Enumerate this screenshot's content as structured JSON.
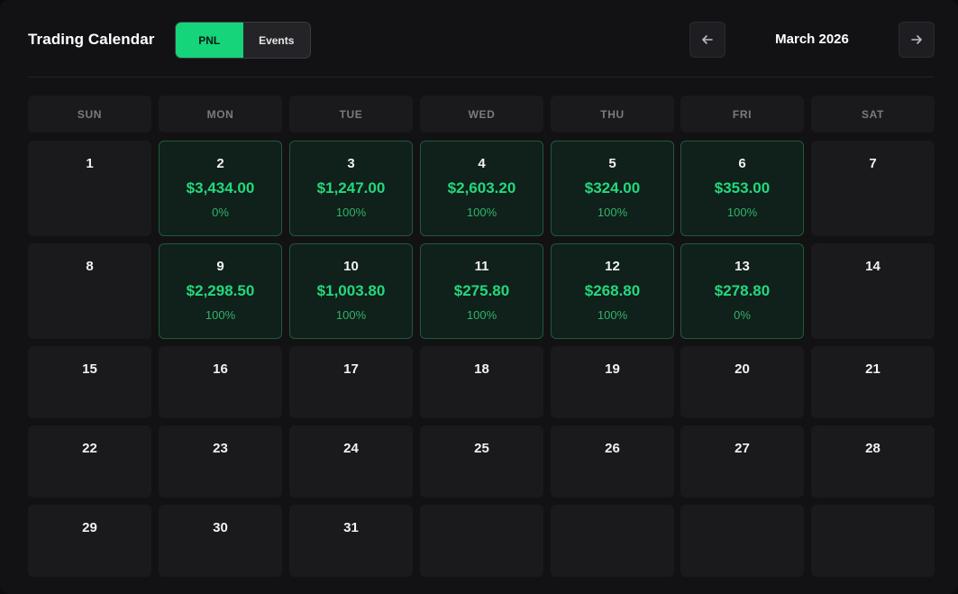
{
  "header": {
    "title": "Trading Calendar",
    "toggle": {
      "pnl_label": "PNL",
      "events_label": "Events",
      "active": "PNL"
    },
    "month_label": "March 2026",
    "prev_icon": "arrow-left-icon",
    "next_icon": "arrow-right-icon"
  },
  "colors": {
    "accent": "#15d47a",
    "profit_text": "#22d97d",
    "profit_cell_bg": "#10201a",
    "profit_cell_border": "#1f5a3a"
  },
  "calendar": {
    "weekdays": [
      "SUN",
      "MON",
      "TUE",
      "WED",
      "THU",
      "FRI",
      "SAT"
    ],
    "weeks": [
      [
        {
          "day": "1"
        },
        {
          "day": "2",
          "pnl": "$3,434.00",
          "pct": "0%"
        },
        {
          "day": "3",
          "pnl": "$1,247.00",
          "pct": "100%"
        },
        {
          "day": "4",
          "pnl": "$2,603.20",
          "pct": "100%"
        },
        {
          "day": "5",
          "pnl": "$324.00",
          "pct": "100%"
        },
        {
          "day": "6",
          "pnl": "$353.00",
          "pct": "100%"
        },
        {
          "day": "7"
        }
      ],
      [
        {
          "day": "8"
        },
        {
          "day": "9",
          "pnl": "$2,298.50",
          "pct": "100%"
        },
        {
          "day": "10",
          "pnl": "$1,003.80",
          "pct": "100%"
        },
        {
          "day": "11",
          "pnl": "$275.80",
          "pct": "100%"
        },
        {
          "day": "12",
          "pnl": "$268.80",
          "pct": "100%"
        },
        {
          "day": "13",
          "pnl": "$278.80",
          "pct": "0%"
        },
        {
          "day": "14"
        }
      ],
      [
        {
          "day": "15"
        },
        {
          "day": "16"
        },
        {
          "day": "17"
        },
        {
          "day": "18"
        },
        {
          "day": "19"
        },
        {
          "day": "20"
        },
        {
          "day": "21"
        }
      ],
      [
        {
          "day": "22"
        },
        {
          "day": "23"
        },
        {
          "day": "24"
        },
        {
          "day": "25"
        },
        {
          "day": "26"
        },
        {
          "day": "27"
        },
        {
          "day": "28"
        }
      ],
      [
        {
          "day": "29"
        },
        {
          "day": "30"
        },
        {
          "day": "31"
        },
        {
          "day": ""
        },
        {
          "day": ""
        },
        {
          "day": ""
        },
        {
          "day": ""
        }
      ]
    ]
  }
}
